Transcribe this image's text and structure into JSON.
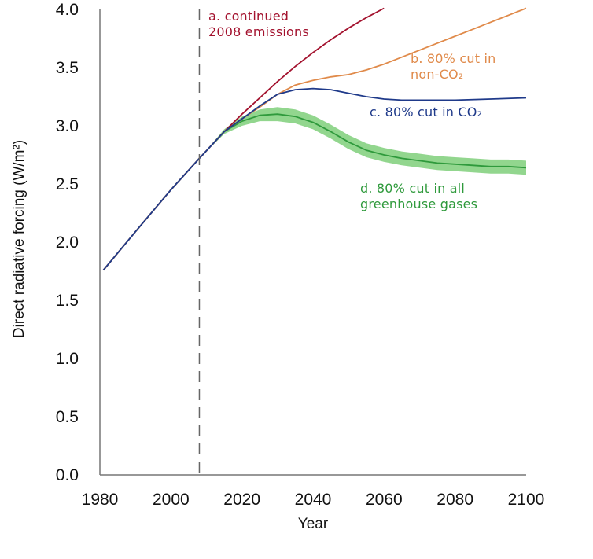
{
  "chart_data": {
    "type": "line",
    "xlabel": "Year",
    "ylabel": "Direct radiative forcing (W/m²)",
    "xlim": [
      1980,
      2100
    ],
    "ylim": [
      0.0,
      4.0
    ],
    "x_ticks": [
      "1980",
      "2000",
      "2020",
      "2040",
      "2060",
      "2080",
      "2100"
    ],
    "y_ticks": [
      "0.0",
      "0.5",
      "1.0",
      "1.5",
      "2.0",
      "2.5",
      "3.0",
      "3.5",
      "4.0"
    ],
    "reference_line": {
      "x": 2008,
      "style": "dashed"
    },
    "series": [
      {
        "key": "a",
        "color": "#a3122e",
        "label_lines": [
          "a. continued",
          "2008 emissions"
        ],
        "x": [
          1981,
          1990,
          2000,
          2008,
          2015,
          2020,
          2025,
          2030,
          2035,
          2040,
          2045,
          2050,
          2055,
          2060
        ],
        "y": [
          1.76,
          2.09,
          2.45,
          2.72,
          2.95,
          3.1,
          3.24,
          3.38,
          3.51,
          3.63,
          3.74,
          3.84,
          3.93,
          4.01
        ]
      },
      {
        "key": "b",
        "color": "#e08a4a",
        "label_lines": [
          "b. 80% cut in",
          "non-CO₂"
        ],
        "x": [
          1981,
          1990,
          2000,
          2008,
          2015,
          2020,
          2025,
          2030,
          2035,
          2040,
          2045,
          2050,
          2055,
          2060,
          2065,
          2070,
          2075,
          2080,
          2085,
          2090,
          2095,
          2100
        ],
        "y": [
          1.76,
          2.09,
          2.45,
          2.72,
          2.95,
          3.06,
          3.16,
          3.27,
          3.35,
          3.39,
          3.42,
          3.44,
          3.48,
          3.53,
          3.59,
          3.65,
          3.71,
          3.77,
          3.83,
          3.89,
          3.95,
          4.01
        ]
      },
      {
        "key": "c",
        "color": "#1f3a8a",
        "label_lines": [
          "c. 80% cut in CO₂"
        ],
        "x": [
          1981,
          1990,
          2000,
          2008,
          2015,
          2020,
          2025,
          2030,
          2035,
          2040,
          2045,
          2050,
          2055,
          2060,
          2065,
          2070,
          2080,
          2090,
          2100
        ],
        "y": [
          1.76,
          2.09,
          2.45,
          2.72,
          2.95,
          3.06,
          3.17,
          3.27,
          3.31,
          3.32,
          3.31,
          3.28,
          3.25,
          3.23,
          3.22,
          3.22,
          3.22,
          3.23,
          3.24
        ]
      },
      {
        "key": "d",
        "color": "#2f9a3c",
        "band_color": "#7fcf7a",
        "label_lines": [
          "d. 80% cut in all",
          "greenhouse gases"
        ],
        "x": [
          1981,
          1990,
          2000,
          2008,
          2015,
          2020,
          2025,
          2030,
          2035,
          2040,
          2045,
          2050,
          2055,
          2060,
          2065,
          2070,
          2075,
          2080,
          2085,
          2090,
          2095,
          2100
        ],
        "y": [
          1.76,
          2.09,
          2.45,
          2.72,
          2.95,
          3.04,
          3.09,
          3.1,
          3.08,
          3.03,
          2.95,
          2.86,
          2.79,
          2.75,
          2.72,
          2.7,
          2.68,
          2.67,
          2.66,
          2.65,
          2.65,
          2.64
        ],
        "band_half_width": [
          0.0,
          0.0,
          0.0,
          0.0,
          0.02,
          0.04,
          0.05,
          0.06,
          0.06,
          0.06,
          0.06,
          0.06,
          0.06,
          0.06,
          0.06,
          0.06,
          0.06,
          0.06,
          0.06,
          0.06,
          0.06,
          0.06
        ]
      }
    ]
  }
}
